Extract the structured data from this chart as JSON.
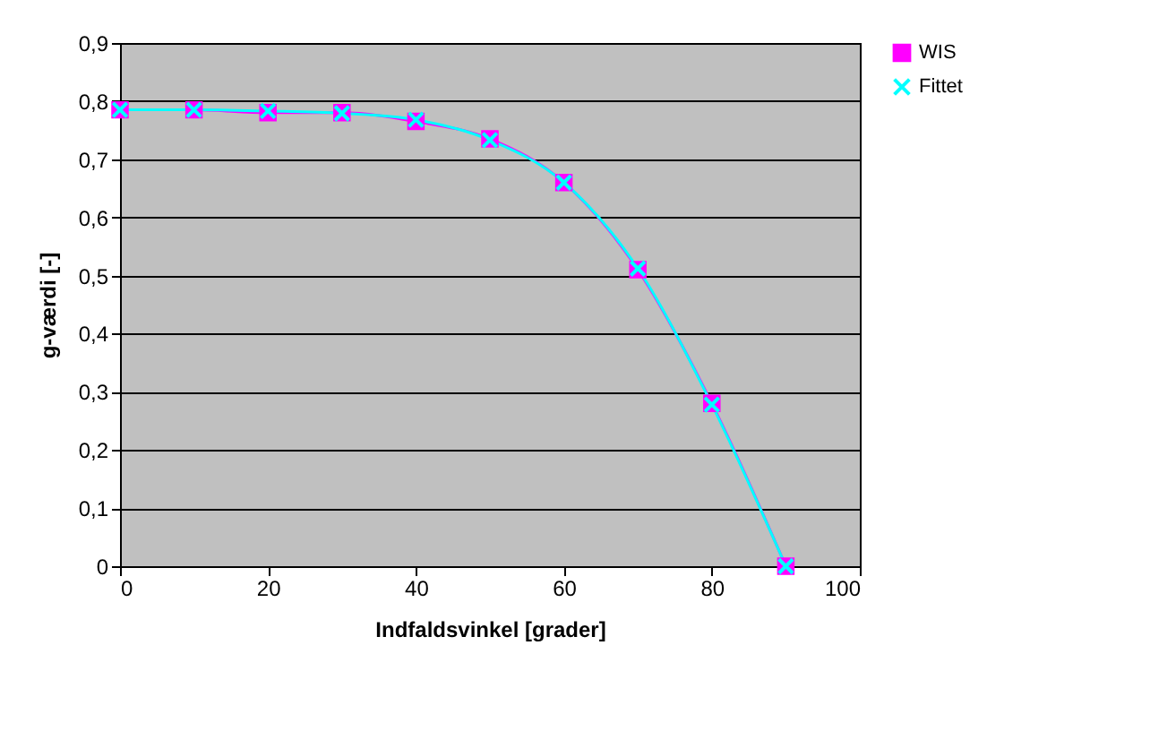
{
  "chart_data": {
    "type": "line",
    "xlabel": "Indfaldsvinkel [grader]",
    "ylabel": "g-værdi [-]",
    "x": [
      0,
      10,
      20,
      30,
      40,
      50,
      60,
      70,
      80,
      90
    ],
    "series": [
      {
        "name": "WIS",
        "color": "#ff00ff",
        "marker": "square",
        "values": [
          0.785,
          0.785,
          0.78,
          0.78,
          0.765,
          0.735,
          0.66,
          0.51,
          0.28,
          0.0
        ]
      },
      {
        "name": "Fittet",
        "color": "#00ffff",
        "marker": "cross",
        "values": [
          0.785,
          0.785,
          0.783,
          0.779,
          0.768,
          0.733,
          0.66,
          0.512,
          0.278,
          0.0
        ]
      }
    ],
    "xlim": [
      0,
      100
    ],
    "xticks": [
      0,
      20,
      40,
      60,
      80,
      100
    ],
    "ylim": [
      0,
      0.9
    ],
    "yticks": [
      {
        "value": 0,
        "label": "0"
      },
      {
        "value": 0.1,
        "label": "0,1"
      },
      {
        "value": 0.2,
        "label": "0,2"
      },
      {
        "value": 0.3,
        "label": "0,3"
      },
      {
        "value": 0.4,
        "label": "0,4"
      },
      {
        "value": 0.5,
        "label": "0,5"
      },
      {
        "value": 0.6,
        "label": "0,6"
      },
      {
        "value": 0.7,
        "label": "0,7"
      },
      {
        "value": 0.8,
        "label": "0,8"
      },
      {
        "value": 0.9,
        "label": "0,9"
      }
    ],
    "grid": "y",
    "legend": "right"
  }
}
